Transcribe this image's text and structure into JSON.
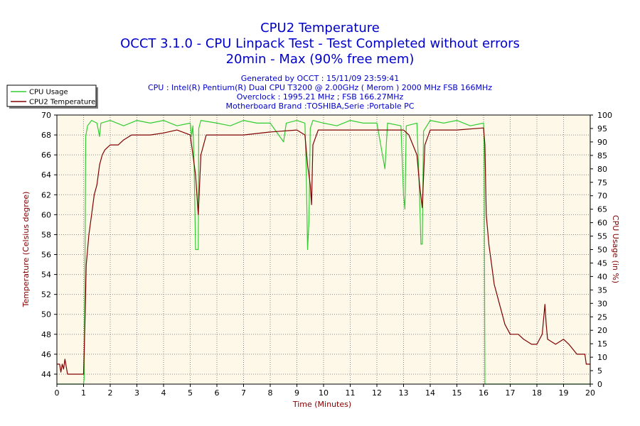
{
  "chart_data": {
    "type": "line",
    "title": "CPU2 Temperature",
    "subtitle_lines": [
      "OCCT 3.1.0 - CPU Linpack Test - Test Completed without errors",
      "20min - Max (90% free mem)"
    ],
    "info_lines": [
      "Generated by OCCT : 15/11/09 23:59:41",
      "CPU : Intel(R) Pentium(R) Dual CPU T3200 @ 2.00GHz ( Merom ) 2000 MHz FSB 166MHz",
      "Overclock : 1995.21 MHz ; FSB 166.27MHz",
      "Motherboard Brand :TOSHIBA,Serie :Portable PC"
    ],
    "xlabel": "Time (Minutes)",
    "ylabel_left": "Temperature (Celsius degree)",
    "ylabel_right": "CPU Usage (in %)",
    "xlim": [
      0,
      20
    ],
    "ylim_left": [
      43,
      70
    ],
    "ylim_right": [
      0,
      100
    ],
    "x_ticks": [
      "0",
      "1",
      "2",
      "3",
      "4",
      "5",
      "6",
      "7",
      "8",
      "9",
      "10",
      "11",
      "12",
      "13",
      "14",
      "15",
      "16",
      "17",
      "18",
      "19",
      "20"
    ],
    "y_left_ticks": [
      "44",
      "46",
      "48",
      "50",
      "52",
      "54",
      "56",
      "58",
      "60",
      "62",
      "64",
      "66",
      "68",
      "70"
    ],
    "y_right_ticks": [
      "0",
      "5",
      "10",
      "15",
      "20",
      "25",
      "30",
      "35",
      "40",
      "45",
      "50",
      "55",
      "60",
      "65",
      "70",
      "75",
      "80",
      "85",
      "90",
      "95",
      "100"
    ],
    "legend": [
      "CPU Usage",
      "CPU2 Temperature"
    ],
    "colors": {
      "cpu_usage": "#33cc33",
      "temperature": "#800000",
      "plot_bg": "#fdf8e8",
      "grid": "#888888",
      "title": "#0000cc"
    },
    "series": [
      {
        "name": "CPU Usage",
        "axis": "right",
        "points": [
          [
            0,
            0
          ],
          [
            1.0,
            0
          ],
          [
            1.02,
            2
          ],
          [
            1.05,
            40
          ],
          [
            1.08,
            92
          ],
          [
            1.15,
            96
          ],
          [
            1.3,
            98
          ],
          [
            1.5,
            97
          ],
          [
            1.6,
            92
          ],
          [
            1.65,
            97
          ],
          [
            2,
            98
          ],
          [
            2.5,
            96
          ],
          [
            3,
            98
          ],
          [
            3.5,
            97
          ],
          [
            4,
            98
          ],
          [
            4.5,
            96
          ],
          [
            5,
            97
          ],
          [
            5.05,
            92
          ],
          [
            5.1,
            96
          ],
          [
            5.15,
            80
          ],
          [
            5.2,
            50
          ],
          [
            5.3,
            50
          ],
          [
            5.32,
            95
          ],
          [
            5.4,
            98
          ],
          [
            6,
            97
          ],
          [
            6.5,
            96
          ],
          [
            7,
            98
          ],
          [
            7.5,
            97
          ],
          [
            8,
            97
          ],
          [
            8.5,
            90
          ],
          [
            8.6,
            97
          ],
          [
            9,
            98
          ],
          [
            9.3,
            97
          ],
          [
            9.35,
            80
          ],
          [
            9.4,
            50
          ],
          [
            9.45,
            60
          ],
          [
            9.5,
            95
          ],
          [
            9.6,
            98
          ],
          [
            10,
            97
          ],
          [
            10.5,
            96
          ],
          [
            11,
            98
          ],
          [
            11.5,
            97
          ],
          [
            12,
            97
          ],
          [
            12.3,
            80
          ],
          [
            12.4,
            97
          ],
          [
            12.9,
            96
          ],
          [
            13.0,
            70
          ],
          [
            13.05,
            65
          ],
          [
            13.1,
            96
          ],
          [
            13.5,
            97
          ],
          [
            13.6,
            70
          ],
          [
            13.65,
            52
          ],
          [
            13.7,
            52
          ],
          [
            13.75,
            94
          ],
          [
            14,
            98
          ],
          [
            14.5,
            97
          ],
          [
            15,
            98
          ],
          [
            15.5,
            96
          ],
          [
            16,
            97
          ],
          [
            16.02,
            90
          ],
          [
            16.05,
            0
          ],
          [
            20,
            0
          ]
        ]
      },
      {
        "name": "CPU2 Temperature",
        "axis": "left",
        "points": [
          [
            0,
            45
          ],
          [
            0.1,
            45
          ],
          [
            0.15,
            44.2
          ],
          [
            0.2,
            45
          ],
          [
            0.25,
            44.5
          ],
          [
            0.3,
            45.5
          ],
          [
            0.4,
            44
          ],
          [
            0.9,
            44
          ],
          [
            1.0,
            44
          ],
          [
            1.05,
            49
          ],
          [
            1.1,
            55
          ],
          [
            1.2,
            58
          ],
          [
            1.3,
            60
          ],
          [
            1.4,
            62
          ],
          [
            1.5,
            63
          ],
          [
            1.6,
            65
          ],
          [
            1.7,
            66
          ],
          [
            1.8,
            66.5
          ],
          [
            2.0,
            67
          ],
          [
            2.3,
            67
          ],
          [
            2.5,
            67.5
          ],
          [
            2.8,
            68
          ],
          [
            3.5,
            68
          ],
          [
            4.0,
            68.2
          ],
          [
            4.5,
            68.5
          ],
          [
            5.0,
            68
          ],
          [
            5.1,
            66
          ],
          [
            5.2,
            64
          ],
          [
            5.3,
            60
          ],
          [
            5.4,
            66
          ],
          [
            5.6,
            68
          ],
          [
            6.0,
            68
          ],
          [
            7.0,
            68
          ],
          [
            8.0,
            68.3
          ],
          [
            9.0,
            68.5
          ],
          [
            9.3,
            68
          ],
          [
            9.4,
            65
          ],
          [
            9.5,
            63
          ],
          [
            9.55,
            61
          ],
          [
            9.6,
            67
          ],
          [
            9.8,
            68.5
          ],
          [
            10.0,
            68.5
          ],
          [
            11.0,
            68.5
          ],
          [
            12.0,
            68.5
          ],
          [
            13.0,
            68.5
          ],
          [
            13.2,
            68
          ],
          [
            13.5,
            66
          ],
          [
            13.6,
            63
          ],
          [
            13.7,
            60.7
          ],
          [
            13.8,
            67
          ],
          [
            14.0,
            68.5
          ],
          [
            15.0,
            68.5
          ],
          [
            16.0,
            68.7
          ],
          [
            16.05,
            67
          ],
          [
            16.1,
            60
          ],
          [
            16.2,
            57
          ],
          [
            16.3,
            55
          ],
          [
            16.4,
            53
          ],
          [
            16.5,
            52
          ],
          [
            16.6,
            51
          ],
          [
            16.7,
            50
          ],
          [
            16.8,
            49
          ],
          [
            17.0,
            48
          ],
          [
            17.3,
            48
          ],
          [
            17.5,
            47.5
          ],
          [
            17.8,
            47
          ],
          [
            18.0,
            47
          ],
          [
            18.2,
            48
          ],
          [
            18.3,
            51
          ],
          [
            18.35,
            49
          ],
          [
            18.4,
            47.5
          ],
          [
            18.7,
            47
          ],
          [
            19.0,
            47.5
          ],
          [
            19.2,
            47
          ],
          [
            19.5,
            46
          ],
          [
            19.8,
            46
          ],
          [
            19.85,
            45
          ],
          [
            20,
            45
          ]
        ]
      }
    ]
  }
}
